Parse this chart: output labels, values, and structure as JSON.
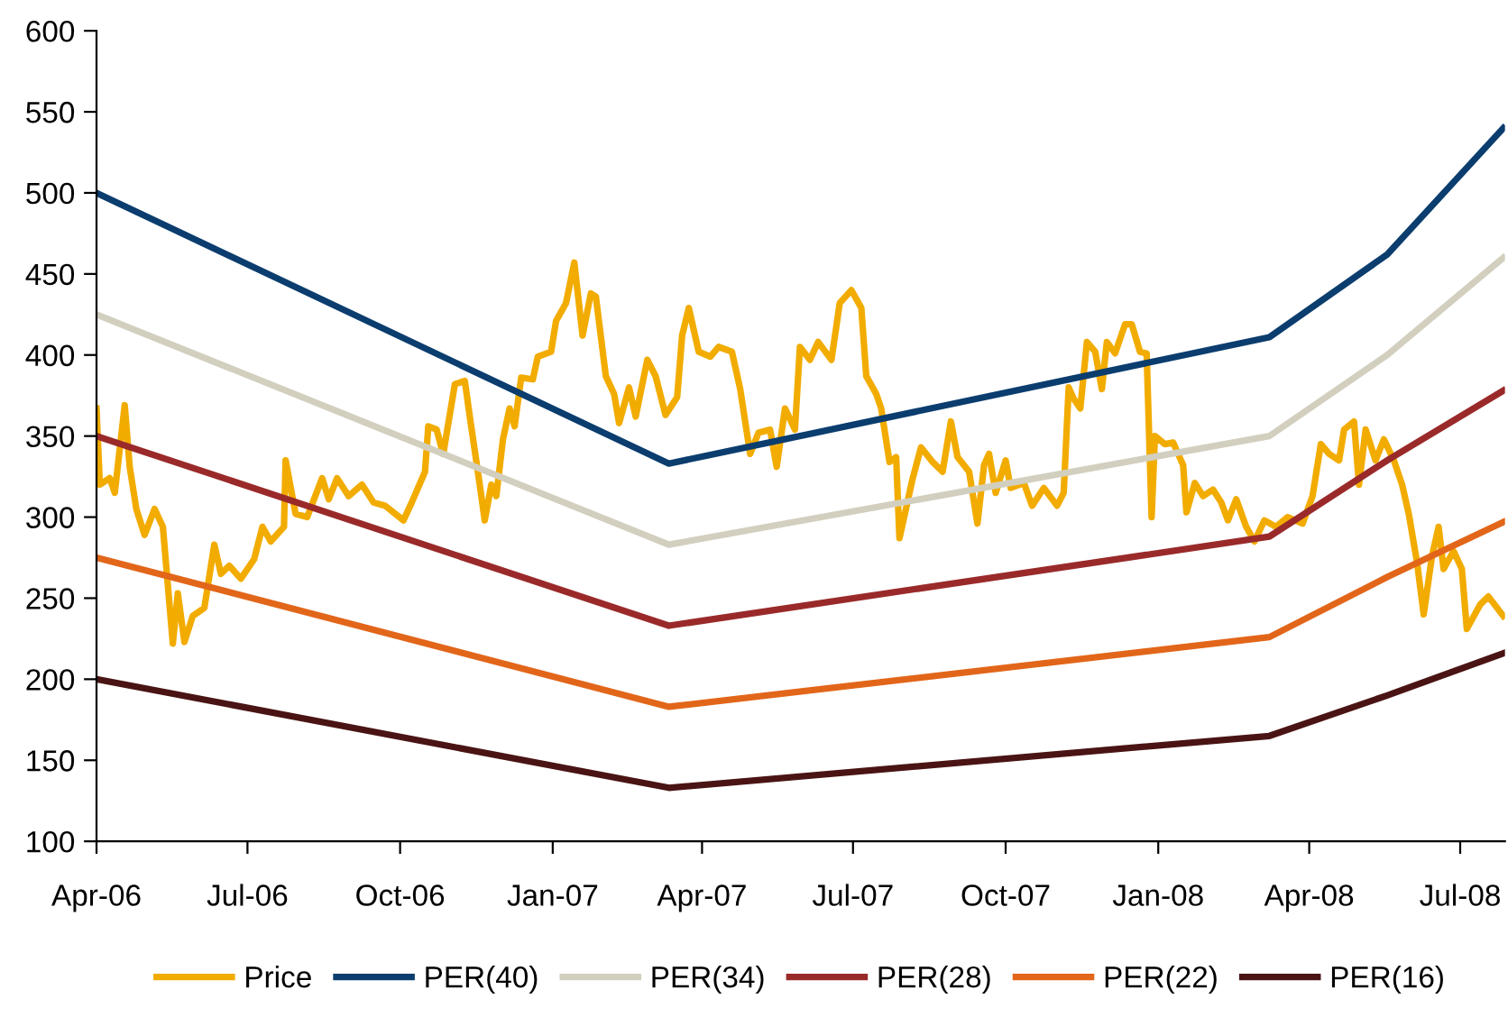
{
  "chart_data": {
    "type": "line",
    "ylim": [
      100,
      600
    ],
    "yticks": [
      100,
      150,
      200,
      250,
      300,
      350,
      400,
      450,
      500,
      550,
      600
    ],
    "xlim": [
      "2006-04-01",
      "2008-07-28"
    ],
    "xticks": [
      {
        "value": "2006-04-01",
        "label": "Apr-06"
      },
      {
        "value": "2006-07-01",
        "label": "Jul-06"
      },
      {
        "value": "2006-10-01",
        "label": "Oct-06"
      },
      {
        "value": "2007-01-01",
        "label": "Jan-07"
      },
      {
        "value": "2007-04-01",
        "label": "Apr-07"
      },
      {
        "value": "2007-07-01",
        "label": "Jul-07"
      },
      {
        "value": "2007-10-01",
        "label": "Oct-07"
      },
      {
        "value": "2008-01-01",
        "label": "Jan-08"
      },
      {
        "value": "2008-04-01",
        "label": "Apr-08"
      },
      {
        "value": "2008-07-01",
        "label": "Jul-08"
      }
    ],
    "grid": false,
    "legend": "bottom",
    "marker": "none",
    "line_style": "solid",
    "series": [
      {
        "name": "Price",
        "color": "#f2ac00",
        "x": [
          "2006-04-01",
          "2006-04-03",
          "2006-04-09",
          "2006-04-12",
          "2006-04-18",
          "2006-04-21",
          "2006-04-25",
          "2006-04-30",
          "2006-05-06",
          "2006-05-11",
          "2006-05-17",
          "2006-05-20",
          "2006-05-24",
          "2006-05-29",
          "2006-06-05",
          "2006-06-11",
          "2006-06-15",
          "2006-06-20",
          "2006-06-27",
          "2006-07-05",
          "2006-07-10",
          "2006-07-15",
          "2006-07-23",
          "2006-07-24",
          "2006-07-30",
          "2006-08-06",
          "2006-08-15",
          "2006-08-19",
          "2006-08-24",
          "2006-08-31",
          "2006-09-08",
          "2006-09-15",
          "2006-09-22",
          "2006-10-03",
          "2006-10-08",
          "2006-10-16",
          "2006-10-18",
          "2006-10-23",
          "2006-10-27",
          "2006-11-03",
          "2006-11-09",
          "2006-11-12",
          "2006-11-18",
          "2006-11-21",
          "2006-11-25",
          "2006-11-28",
          "2006-12-02",
          "2006-12-06",
          "2006-12-09",
          "2006-12-13",
          "2006-12-20",
          "2006-12-23",
          "2006-12-31",
          "2007-01-03",
          "2007-01-09",
          "2007-01-14",
          "2007-01-19",
          "2007-01-24",
          "2007-01-27",
          "2007-02-02",
          "2007-02-07",
          "2007-02-10",
          "2007-02-16",
          "2007-02-20",
          "2007-02-27",
          "2007-03-04",
          "2007-03-10",
          "2007-03-17",
          "2007-03-20",
          "2007-03-24",
          "2007-03-30",
          "2007-04-06",
          "2007-04-11",
          "2007-04-19",
          "2007-04-24",
          "2007-04-30",
          "2007-05-05",
          "2007-05-12",
          "2007-05-16",
          "2007-05-21",
          "2007-05-27",
          "2007-05-30",
          "2007-06-05",
          "2007-06-10",
          "2007-06-18",
          "2007-06-23",
          "2007-06-30",
          "2007-07-06",
          "2007-07-09",
          "2007-07-15",
          "2007-07-18",
          "2007-07-23",
          "2007-07-27",
          "2007-07-29",
          "2007-08-06",
          "2007-08-11",
          "2007-08-18",
          "2007-08-24",
          "2007-08-29",
          "2007-09-02",
          "2007-09-09",
          "2007-09-14",
          "2007-09-18",
          "2007-09-21",
          "2007-09-25",
          "2007-10-01",
          "2007-10-04",
          "2007-10-12",
          "2007-10-17",
          "2007-10-24",
          "2007-11-01",
          "2007-11-05",
          "2007-11-08",
          "2007-11-11",
          "2007-11-15",
          "2007-11-19",
          "2007-11-24",
          "2007-11-28",
          "2007-12-01",
          "2007-12-06",
          "2007-12-12",
          "2007-12-16",
          "2007-12-21",
          "2007-12-25",
          "2007-12-28",
          "2007-12-30",
          "2008-01-05",
          "2008-01-10",
          "2008-01-16",
          "2008-01-18",
          "2008-01-23",
          "2008-01-28",
          "2008-02-03",
          "2008-02-08",
          "2008-02-12",
          "2008-02-17",
          "2008-02-23",
          "2008-02-28",
          "2008-03-05",
          "2008-03-12",
          "2008-03-19",
          "2008-03-28",
          "2008-04-03",
          "2008-04-08",
          "2008-04-13",
          "2008-04-19",
          "2008-04-22",
          "2008-04-28",
          "2008-05-01",
          "2008-05-05",
          "2008-05-11",
          "2008-05-16",
          "2008-05-22",
          "2008-05-27",
          "2008-05-31",
          "2008-06-05",
          "2008-06-09",
          "2008-06-14",
          "2008-06-18",
          "2008-06-21",
          "2008-06-27",
          "2008-07-02",
          "2008-07-05",
          "2008-07-13",
          "2008-07-18",
          "2008-07-27"
        ],
        "values": [
          367,
          320,
          324,
          315,
          369,
          331,
          305,
          289,
          305,
          294,
          222,
          253,
          223,
          239,
          244,
          283,
          265,
          270,
          262,
          274,
          294,
          285,
          294,
          335,
          302,
          300,
          324,
          311,
          324,
          313,
          320,
          309,
          307,
          298,
          309,
          328,
          356,
          354,
          339,
          382,
          384,
          362,
          320,
          298,
          320,
          313,
          348,
          367,
          356,
          386,
          385,
          399,
          402,
          421,
          432,
          457,
          412,
          438,
          436,
          387,
          376,
          358,
          380,
          362,
          397,
          387,
          363,
          374,
          412,
          429,
          402,
          399,
          405,
          402,
          379,
          339,
          352,
          354,
          331,
          367,
          354,
          405,
          397,
          408,
          397,
          432,
          440,
          429,
          387,
          376,
          367,
          334,
          337,
          287,
          324,
          343,
          334,
          328,
          359,
          337,
          328,
          296,
          332,
          339,
          315,
          335,
          318,
          321,
          307,
          318,
          307,
          315,
          380,
          373,
          367,
          408,
          402,
          379,
          408,
          401,
          419,
          419,
          402,
          401,
          300,
          350,
          345,
          346,
          332,
          303,
          321,
          313,
          317,
          309,
          298,
          311,
          294,
          285,
          298,
          294,
          300,
          296,
          313,
          345,
          339,
          335,
          354,
          359,
          320,
          354,
          335,
          348,
          335,
          320,
          302,
          272,
          240,
          276,
          294,
          268,
          279,
          268,
          231,
          246,
          251,
          239
        ]
      },
      {
        "name": "PER(40)",
        "color": "#0b3d6e",
        "x": [
          "2006-04-01",
          "2007-03-12",
          "2008-03-08",
          "2008-05-18",
          "2008-07-27"
        ],
        "values": [
          500,
          333,
          411,
          462,
          540
        ]
      },
      {
        "name": "PER(34)",
        "color": "#d2cfbf",
        "x": [
          "2006-04-01",
          "2007-03-12",
          "2008-03-08",
          "2008-05-18",
          "2008-07-27"
        ],
        "values": [
          425,
          283,
          350,
          400,
          460
        ]
      },
      {
        "name": "PER(28)",
        "color": "#9a2a2a",
        "x": [
          "2006-04-01",
          "2007-03-12",
          "2008-03-08",
          "2008-05-18",
          "2008-07-27"
        ],
        "values": [
          350,
          233,
          288,
          335,
          378
        ]
      },
      {
        "name": "PER(22)",
        "color": "#e2661a",
        "x": [
          "2006-04-01",
          "2007-03-12",
          "2008-03-08",
          "2008-05-18",
          "2008-07-27"
        ],
        "values": [
          275,
          183,
          226,
          263,
          297
        ]
      },
      {
        "name": "PER(16)",
        "color": "#4a1414",
        "x": [
          "2006-04-01",
          "2007-03-12",
          "2008-03-08",
          "2008-05-18",
          "2008-07-27"
        ],
        "values": [
          200,
          133,
          165,
          190,
          216
        ]
      }
    ]
  }
}
